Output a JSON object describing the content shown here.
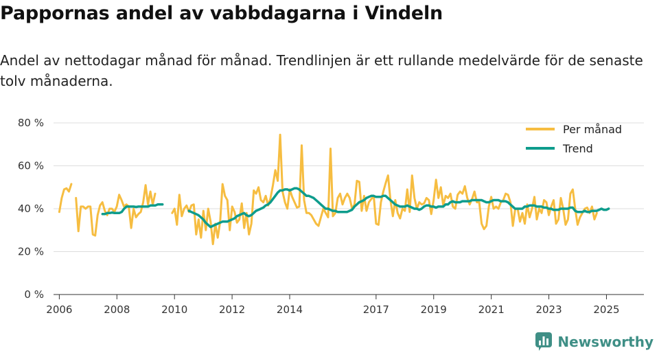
{
  "header": {
    "title": "Pappornas andel av vabbdagarna i Vindeln",
    "subtitle": "Andel av nettodagar månad för månad. Trendlinjen är ett rullande medelvärde för de senaste tolv månaderna."
  },
  "brand": {
    "name": "Newsworthy",
    "icon": "newsworthy-logo-icon"
  },
  "colors": {
    "monthly": "#f6bd41",
    "trend": "#0e9c8c",
    "grid": "#dddddd",
    "axis": "#333333",
    "brand": "#3f8f86"
  },
  "chart_data": {
    "type": "line",
    "title": "Pappornas andel av vabbdagarna i Vindeln",
    "xlabel": "",
    "ylabel": "",
    "xlim": [
      2005.8,
      2026.3
    ],
    "ylim": [
      0,
      80
    ],
    "yticks": [
      0,
      20,
      40,
      60,
      80
    ],
    "ytick_labels": [
      "0 %",
      "20 %",
      "40 %",
      "60 %",
      "80 %"
    ],
    "xticks": [
      2006,
      2008,
      2010,
      2012,
      2014,
      2017,
      2019,
      2021,
      2023,
      2025
    ],
    "xtick_labels": [
      "2006",
      "2008",
      "2010",
      "2012",
      "2014",
      "2017",
      "2019",
      "2021",
      "2023",
      "2025"
    ],
    "grid": true,
    "legend_position": "top-right",
    "series": [
      {
        "name": "Per månad",
        "segments": [
          {
            "start": 2006.0,
            "step": 0.0833,
            "values": [
              38.5,
              45,
              49,
              49.5,
              48,
              51.5
            ]
          },
          {
            "start": 2006.58,
            "step": 0.0833,
            "values": [
              45,
              29.5,
              41,
              41,
              40,
              41,
              41,
              28,
              27.5,
              37,
              41.5,
              43,
              39,
              37,
              40,
              40,
              38.5,
              41,
              46.5,
              44,
              41,
              42,
              41,
              31,
              40,
              36,
              37.5,
              38.5,
              43,
              51,
              42,
              48,
              42,
              47
            ]
          },
          {
            "start": 2009.92,
            "step": 0.0833,
            "values": [
              38,
              40,
              32.5,
              46.5,
              36.5,
              40,
              41.5,
              38.5,
              41.5,
              42,
              28,
              35,
              26.5,
              39,
              30,
              40,
              34,
              23.5,
              33,
              26.5,
              34,
              51.5,
              46,
              44,
              30,
              41,
              38.5,
              33.5,
              35,
              42.5,
              31,
              38,
              28,
              33,
              48.5,
              47,
              50,
              44,
              43,
              46,
              41.5,
              45,
              51,
              58,
              53,
              74.5,
              48,
              43,
              40,
              49,
              45.5,
              43,
              40.5,
              41,
              69.5,
              44,
              38,
              38,
              37,
              35,
              33,
              32,
              36,
              40,
              38,
              36,
              68,
              36.5,
              38,
              45,
              47,
              42,
              45,
              47,
              45,
              40,
              42,
              53,
              52.5,
              39,
              46,
              39,
              43,
              44.5,
              46,
              33,
              32.5,
              43,
              48,
              52,
              55.5,
              44,
              36.5,
              44,
              38,
              35.5,
              40,
              39,
              49,
              38.5,
              55.5,
              45,
              40,
              43,
              42,
              42.5,
              45,
              44,
              37.5,
              44,
              53.5,
              45,
              50,
              41.5,
              46,
              45,
              47,
              41,
              40,
              46.5,
              48,
              47,
              50.5,
              45,
              42,
              44.5,
              48,
              43,
              43,
              33,
              30.5,
              32,
              41,
              45.5,
              40,
              41,
              40,
              43,
              44,
              47,
              46.5,
              43,
              32,
              40,
              40,
              34,
              38,
              33,
              42,
              36,
              40,
              45.5,
              35,
              40,
              38,
              44,
              43,
              37,
              41,
              44,
              33,
              35,
              45,
              40,
              32.5,
              35,
              47,
              49,
              40,
              32.5,
              36,
              38,
              40,
              40.5,
              38,
              41,
              35,
              38
            ]
          }
        ]
      },
      {
        "name": "Trend",
        "segments": [
          {
            "start": 2007.5,
            "step": 0.0833,
            "values": [
              37.5,
              37.5,
              38,
              38,
              38.2,
              38,
              38,
              38,
              38.5,
              40,
              41,
              41,
              41,
              41,
              40.8,
              41,
              41,
              41,
              41,
              41,
              41.5,
              41.5,
              41.5,
              42,
              42,
              42
            ]
          },
          {
            "start": 2010.5,
            "step": 0.0833,
            "values": [
              39,
              38.5,
              38,
              37.5,
              37,
              36,
              35,
              33.5,
              32.5,
              31.5,
              32,
              32.5,
              33,
              33.5,
              34,
              34,
              34,
              34.5,
              35,
              35.5,
              36.5,
              37,
              37.5,
              38,
              37,
              36.5,
              37,
              38,
              39,
              39.5,
              40,
              40.5,
              41.5,
              42,
              43,
              44.5,
              46,
              47.5,
              48.5,
              48.5,
              49,
              49,
              48.5,
              49,
              49.5,
              49.5,
              49,
              48,
              47,
              46,
              46,
              45.5,
              45,
              44,
              43,
              42,
              41,
              40,
              40,
              39.5,
              39,
              39,
              38.5,
              38.5,
              38.5,
              38.5,
              38.5,
              39,
              39.5,
              41,
              42,
              43,
              43.5,
              44,
              45,
              45.5,
              46,
              46,
              45.5,
              45.5,
              45.5,
              46,
              46,
              45,
              44,
              43,
              42,
              41.5,
              41,
              41,
              41,
              41.5,
              41,
              40.5,
              40,
              40,
              39.5,
              40,
              41,
              41.5,
              41.5,
              41,
              41,
              40.5,
              41,
              41,
              41,
              42,
              42,
              43,
              43.5,
              43,
              43,
              43,
              43.5,
              43.5,
              43.5,
              43.5,
              44,
              44,
              44,
              44,
              44,
              43.5,
              43,
              43,
              43.5,
              44,
              44,
              44,
              43.5,
              43.5,
              43.5,
              43,
              42,
              41,
              40,
              40,
              40,
              40,
              41,
              41,
              41.5,
              41.5,
              41.5,
              41,
              41,
              41,
              40.5,
              40.5,
              40,
              40,
              39.5,
              39.5,
              39.5,
              40,
              40,
              40,
              40,
              40.5,
              40.5,
              39,
              38.5,
              38.5,
              38.5,
              39,
              38.5,
              38.5,
              39,
              39,
              39,
              39.5,
              40,
              39.5,
              39.5,
              40
            ]
          }
        ]
      }
    ]
  }
}
